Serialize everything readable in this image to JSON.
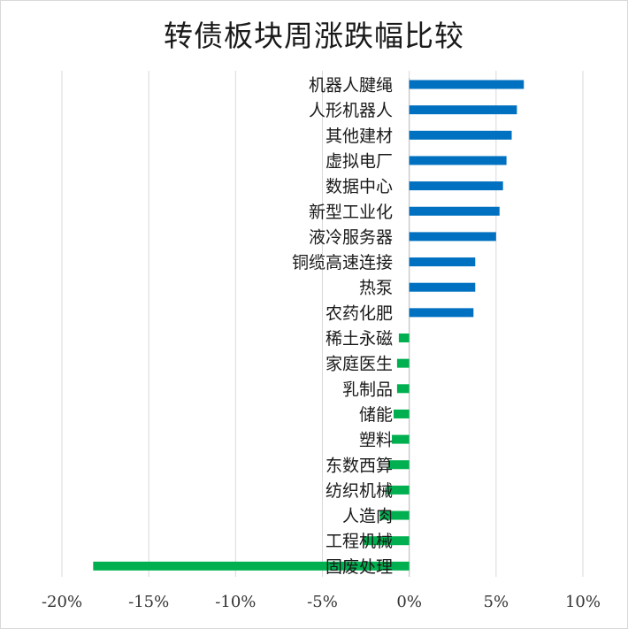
{
  "chart_data": {
    "type": "bar",
    "orientation": "horizontal",
    "title": "转债板块周涨跌幅比较",
    "categories": [
      "机器人腱绳",
      "人形机器人",
      "其他建材",
      "虚拟电厂",
      "数据中心",
      "新型工业化",
      "液冷服务器",
      "铜缆高速连接",
      "热泵",
      "农药化肥",
      "稀土永磁",
      "家庭医生",
      "乳制品",
      "储能",
      "塑料",
      "东数西算",
      "纺织机械",
      "人造肉",
      "工程机械",
      "固废处理"
    ],
    "values": [
      6.6,
      6.2,
      5.9,
      5.6,
      5.4,
      5.2,
      5.0,
      3.8,
      3.8,
      3.7,
      -0.6,
      -0.7,
      -0.7,
      -0.9,
      -1.0,
      -1.2,
      -1.3,
      -1.7,
      -2.6,
      -18.2
    ],
    "xlim": [
      -20,
      10
    ],
    "xticks": [
      "-20%",
      "-15%",
      "-10%",
      "-5%",
      "0%",
      "5%",
      "10%"
    ],
    "xtick_values": [
      -20,
      -15,
      -10,
      -5,
      0,
      5,
      10
    ],
    "grid": "vertical",
    "colors": {
      "positive": "#0070c0",
      "negative": "#00b050",
      "grid": "#d9d9d9"
    },
    "xlabel": "",
    "ylabel": ""
  }
}
